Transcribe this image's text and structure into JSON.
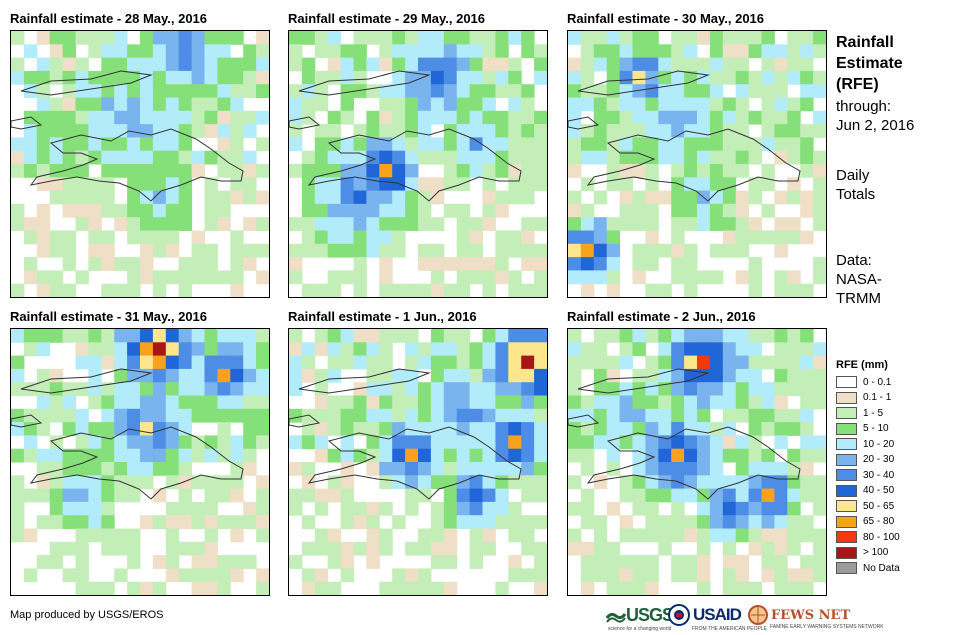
{
  "panels": [
    {
      "title": "Rainfall estimate - 28 May., 2016",
      "seed": 1
    },
    {
      "title": "Rainfall estimate - 29 May., 2016",
      "seed": 2
    },
    {
      "title": "Rainfall estimate - 30 May., 2016",
      "seed": 3
    },
    {
      "title": "Rainfall estimate - 31 May., 2016",
      "seed": 4
    },
    {
      "title": "Rainfall estimate - 1 Jun., 2016",
      "seed": 5
    },
    {
      "title": "Rainfall estimate - 2 Jun., 2016",
      "seed": 6
    }
  ],
  "sidebar": {
    "title_line1": "Rainfall",
    "title_line2": "Estimate",
    "title_line3": "(RFE)",
    "through_label": "through:",
    "through_date": "Jun 2, 2016",
    "totals_line1": "Daily",
    "totals_line2": "Totals",
    "data_label": "Data:",
    "data_source_line1": "NASA-",
    "data_source_line2": "TRMM"
  },
  "legend": {
    "title": "RFE (mm)",
    "items": [
      {
        "label": "0 - 0.1",
        "color": "#ffffff"
      },
      {
        "label": "0.1 - 1",
        "color": "#eedfc6"
      },
      {
        "label": "1 - 5",
        "color": "#c4eeb8"
      },
      {
        "label": "5 - 10",
        "color": "#86e07a"
      },
      {
        "label": "10 - 20",
        "color": "#b2ecfa"
      },
      {
        "label": "20 - 30",
        "color": "#79b4ef"
      },
      {
        "label": "30 - 40",
        "color": "#4e8de6"
      },
      {
        "label": "40 - 50",
        "color": "#2166d6"
      },
      {
        "label": "50 - 65",
        "color": "#fde68c"
      },
      {
        "label": "65 - 80",
        "color": "#f9a21c"
      },
      {
        "label": "80 - 100",
        "color": "#f43a0b"
      },
      {
        "label": "> 100",
        "color": "#a81616"
      },
      {
        "label": "No Data",
        "color": "#9b9b9b"
      }
    ]
  },
  "footer": {
    "credit": "Map produced by USGS/EROS",
    "usgs": "USGS",
    "usgs_tagline": "science for a changing world",
    "usaid": "USAID",
    "usaid_tagline": "FROM THE AMERICAN PEOPLE",
    "fews": "FEWS NET",
    "fews_tagline": "FAMINE EARLY WARNING SYSTEMS NETWORK"
  }
}
